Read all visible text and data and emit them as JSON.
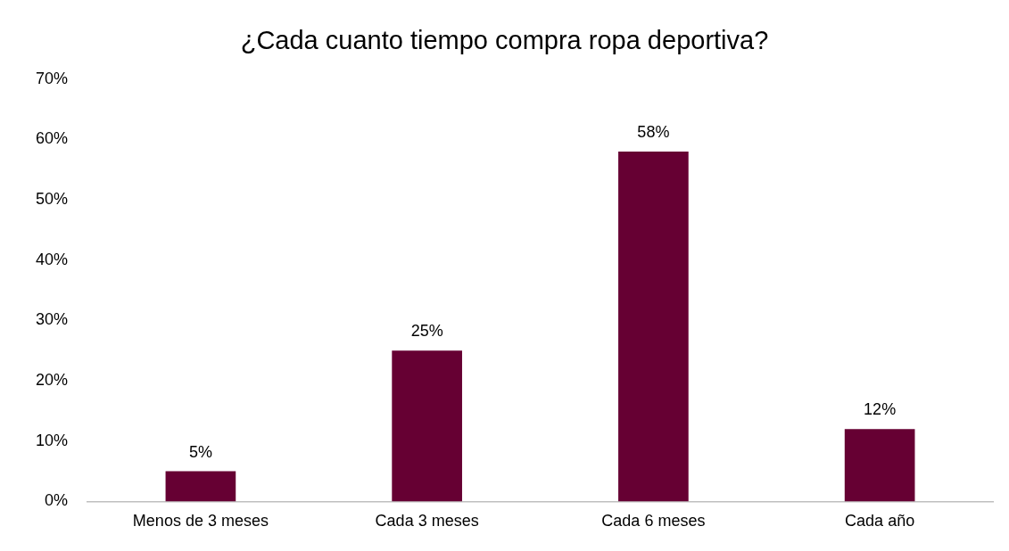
{
  "chart_data": {
    "type": "bar",
    "title": "¿Cada cuanto tiempo compra ropa deportiva?",
    "categories": [
      "Menos de 3 meses",
      "Cada 3 meses",
      "Cada 6 meses",
      "Cada año"
    ],
    "values": [
      5,
      25,
      58,
      12
    ],
    "color": "#660033",
    "value_labels": [
      "5%",
      "25%",
      "58%",
      "12%"
    ],
    "ylim": [
      0,
      70
    ],
    "yticks": [
      {
        "value": 0,
        "label": "0%"
      },
      {
        "value": 10,
        "label": "10%"
      },
      {
        "value": 20,
        "label": "20%"
      },
      {
        "value": 30,
        "label": "30%"
      },
      {
        "value": 40,
        "label": "40%"
      },
      {
        "value": 50,
        "label": "50%"
      },
      {
        "value": 60,
        "label": "60%"
      },
      {
        "value": 70,
        "label": "70%"
      }
    ],
    "grid": false,
    "legend": false
  }
}
